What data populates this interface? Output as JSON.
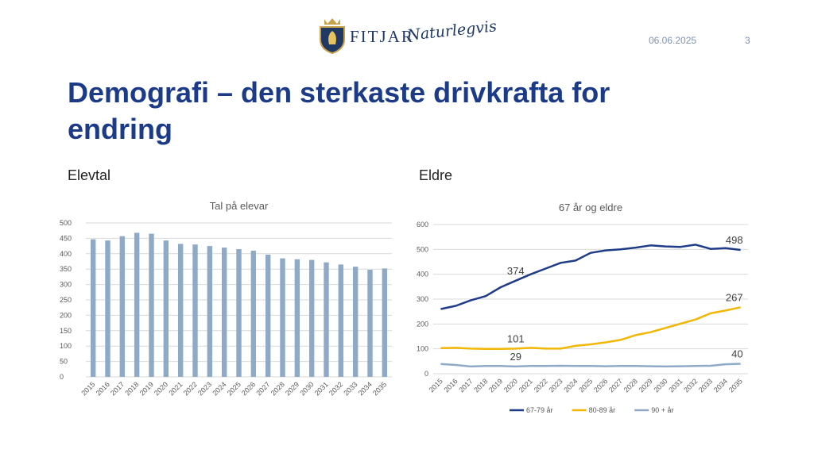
{
  "header": {
    "logo_text": "FITJAR",
    "logo_tagline": "Naturlegvis",
    "date": "06.06.2025",
    "page_number": "3"
  },
  "title": "Demografi – den sterkaste drivkrafta for endring",
  "sections": {
    "left_label": "Elevtal",
    "right_label": "Eldre"
  },
  "colors": {
    "title": "#1b3a87",
    "bar": "#8faac6",
    "s1": "#1f3c88",
    "s2": "#f2b705",
    "s3": "#8faac6"
  },
  "chart_data": [
    {
      "type": "bar",
      "title": "Tal på elevar",
      "categories": [
        "2015",
        "2016",
        "2017",
        "2018",
        "2019",
        "2020",
        "2021",
        "2022",
        "2023",
        "2024",
        "2025",
        "2026",
        "2027",
        "2028",
        "2029",
        "2030",
        "2031",
        "2032",
        "2033",
        "2034",
        "2035"
      ],
      "values": [
        447,
        443,
        457,
        468,
        465,
        443,
        432,
        430,
        425,
        420,
        415,
        410,
        397,
        385,
        382,
        380,
        372,
        365,
        358,
        348,
        352
      ],
      "ylim": [
        0,
        500
      ],
      "yticks": [
        "0",
        "50",
        "100",
        "150",
        "200",
        "250",
        "300",
        "350",
        "400",
        "450",
        "500"
      ],
      "grid": true
    },
    {
      "type": "line",
      "title": "67 år og eldre",
      "x": [
        "2015",
        "2016",
        "2017",
        "2018",
        "2019",
        "2020",
        "2021",
        "2022",
        "2023",
        "2024",
        "2025",
        "2026",
        "2027",
        "2028",
        "2029",
        "2030",
        "2031",
        "2032",
        "2033",
        "2034",
        "2035"
      ],
      "series": [
        {
          "name": "67-79 år",
          "values": [
            260,
            273,
            295,
            312,
            348,
            374,
            400,
            423,
            446,
            455,
            486,
            496,
            500,
            507,
            516,
            512,
            510,
            519,
            502,
            505,
            498
          ]
        },
        {
          "name": "80-89 år",
          "values": [
            103,
            104,
            101,
            100,
            100,
            101,
            104,
            101,
            101,
            112,
            118,
            126,
            136,
            155,
            167,
            184,
            201,
            218,
            243,
            254,
            267
          ]
        },
        {
          "name": "90 + år",
          "values": [
            39,
            35,
            29,
            31,
            31,
            29,
            31,
            31,
            32,
            31,
            31,
            30,
            31,
            31,
            30,
            29,
            30,
            31,
            32,
            38,
            40
          ]
        }
      ],
      "data_labels": [
        {
          "series": 0,
          "index": 5,
          "text": "374"
        },
        {
          "series": 0,
          "index": 20,
          "text": "498"
        },
        {
          "series": 1,
          "index": 5,
          "text": "101"
        },
        {
          "series": 1,
          "index": 20,
          "text": "267"
        },
        {
          "series": 2,
          "index": 5,
          "text": "29"
        },
        {
          "series": 2,
          "index": 20,
          "text": "40"
        }
      ],
      "ylim": [
        0,
        600
      ],
      "yticks": [
        "0",
        "100",
        "200",
        "300",
        "400",
        "500",
        "600"
      ],
      "legend": "bottom",
      "grid": true
    }
  ]
}
